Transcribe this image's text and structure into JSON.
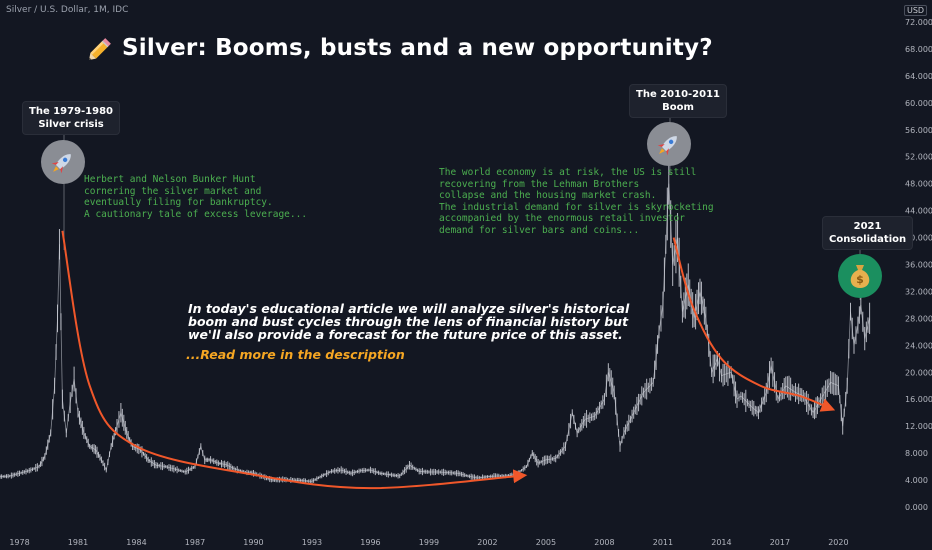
{
  "header": {
    "symbol": "Silver / U.S. Dollar, 1M, IDC",
    "currency": "USD"
  },
  "title": "Silver: Booms, busts and a new opportunity?",
  "callouts": {
    "crisis_1980": [
      "The 1979-1980",
      "Silver crisis"
    ],
    "boom_2011": [
      "The 2010-2011",
      "Boom"
    ],
    "consolidation_2021": [
      "2021",
      "Consolidation"
    ]
  },
  "notes": {
    "hunt": [
      "Herbert and Nelson Bunker Hunt",
      "cornering the silver market and",
      "eventually filing for bankruptcy.",
      "A cautionary tale of excess leverage..."
    ],
    "economy": [
      "The world economy is at risk, the US is still",
      "recovering from the Lehman Brothers",
      "collapse and the housing market crash.",
      "The industrial demand for silver is skyrocketing",
      "accompanied by the enormous retail investor",
      "demand for silver bars and coins..."
    ]
  },
  "article": [
    "In today's educational article we will analyze silver's historical",
    "boom and bust cycles through the lens of financial history but",
    "we'll also provide a forecast for the future price of this asset."
  ],
  "read_more": "...Read more in the description",
  "colors": {
    "background": "#131722",
    "price": "#d1d4dc",
    "arrow": "#f0572a",
    "note": "#4caf50",
    "read_more": "#f5a623",
    "badge_grey": "#8a8d94",
    "badge_green": "#1b8f5f"
  },
  "icons": {
    "title": "pencil-icon",
    "crisis_1980": "rocket-icon",
    "boom_2011": "rocket-icon",
    "consolidation_2021": "money-bag-icon"
  },
  "chart_data": {
    "type": "line",
    "title": "Silver: Booms, busts and a new opportunity?",
    "x_ticks": [
      "1978",
      "1981",
      "1984",
      "1987",
      "1990",
      "1993",
      "1996",
      "1999",
      "2002",
      "2005",
      "2008",
      "2011",
      "2014",
      "2017",
      "2020"
    ],
    "y_ticks": [
      "0.000",
      "4.000",
      "8.000",
      "12.000",
      "16.000",
      "20.000",
      "24.000",
      "28.000",
      "32.000",
      "36.000",
      "40.000",
      "44.000",
      "48.000",
      "52.000",
      "56.000",
      "60.000",
      "64.000",
      "68.000",
      "72.000"
    ],
    "xlim": [
      1977.0,
      2022.8
    ],
    "ylim": [
      0,
      72
    ],
    "series": [
      {
        "values": [
          [
            1977.0,
            4.5
          ],
          [
            1977.5,
            4.6
          ],
          [
            1978.0,
            5.0
          ],
          [
            1978.5,
            5.4
          ],
          [
            1979.0,
            6.0
          ],
          [
            1979.3,
            7.5
          ],
          [
            1979.6,
            11.0
          ],
          [
            1979.8,
            18.0
          ],
          [
            1979.95,
            28.0
          ],
          [
            1980.05,
            39.0
          ],
          [
            1980.2,
            16.0
          ],
          [
            1980.4,
            11.0
          ],
          [
            1980.6,
            15.5
          ],
          [
            1980.8,
            19.0
          ],
          [
            1981.0,
            14.0
          ],
          [
            1981.3,
            11.0
          ],
          [
            1981.6,
            9.0
          ],
          [
            1981.9,
            8.5
          ],
          [
            1982.2,
            7.0
          ],
          [
            1982.45,
            5.5
          ],
          [
            1982.7,
            9.0
          ],
          [
            1983.0,
            12.0
          ],
          [
            1983.2,
            14.0
          ],
          [
            1983.5,
            11.0
          ],
          [
            1983.8,
            9.0
          ],
          [
            1984.2,
            8.5
          ],
          [
            1984.6,
            7.0
          ],
          [
            1985.0,
            6.2
          ],
          [
            1985.5,
            6.0
          ],
          [
            1986.0,
            5.6
          ],
          [
            1986.5,
            5.2
          ],
          [
            1987.0,
            6.0
          ],
          [
            1987.3,
            9.0
          ],
          [
            1987.5,
            7.0
          ],
          [
            1987.8,
            7.0
          ],
          [
            1988.2,
            6.5
          ],
          [
            1988.6,
            6.3
          ],
          [
            1989.0,
            5.7
          ],
          [
            1989.5,
            5.2
          ],
          [
            1990.0,
            5.0
          ],
          [
            1990.5,
            4.5
          ],
          [
            1991.0,
            4.0
          ],
          [
            1991.5,
            4.1
          ],
          [
            1992.0,
            4.0
          ],
          [
            1992.5,
            3.9
          ],
          [
            1993.0,
            3.8
          ],
          [
            1993.5,
            4.6
          ],
          [
            1994.0,
            5.3
          ],
          [
            1994.5,
            5.5
          ],
          [
            1995.0,
            5.0
          ],
          [
            1995.5,
            5.4
          ],
          [
            1996.0,
            5.5
          ],
          [
            1996.5,
            5.0
          ],
          [
            1997.0,
            4.8
          ],
          [
            1997.5,
            4.6
          ],
          [
            1998.0,
            6.2
          ],
          [
            1998.5,
            5.3
          ],
          [
            1999.0,
            5.2
          ],
          [
            1999.5,
            5.2
          ],
          [
            2000.0,
            5.1
          ],
          [
            2000.5,
            5.0
          ],
          [
            2001.0,
            4.6
          ],
          [
            2001.5,
            4.3
          ],
          [
            2002.0,
            4.5
          ],
          [
            2002.5,
            4.6
          ],
          [
            2003.0,
            4.6
          ],
          [
            2003.5,
            4.9
          ],
          [
            2004.0,
            6.0
          ],
          [
            2004.3,
            8.0
          ],
          [
            2004.6,
            6.5
          ],
          [
            2005.0,
            7.0
          ],
          [
            2005.5,
            7.2
          ],
          [
            2006.0,
            9.0
          ],
          [
            2006.35,
            14.0
          ],
          [
            2006.6,
            11.0
          ],
          [
            2007.0,
            13.0
          ],
          [
            2007.5,
            13.5
          ],
          [
            2008.0,
            16.0
          ],
          [
            2008.2,
            20.0
          ],
          [
            2008.5,
            17.0
          ],
          [
            2008.8,
            9.0
          ],
          [
            2009.0,
            11.0
          ],
          [
            2009.5,
            14.0
          ],
          [
            2010.0,
            17.0
          ],
          [
            2010.5,
            18.5
          ],
          [
            2010.8,
            26.0
          ],
          [
            2011.0,
            30.0
          ],
          [
            2011.3,
            48.0
          ],
          [
            2011.5,
            36.0
          ],
          [
            2011.75,
            40.0
          ],
          [
            2012.0,
            29.0
          ],
          [
            2012.3,
            33.0
          ],
          [
            2012.6,
            28.0
          ],
          [
            2012.9,
            32.0
          ],
          [
            2013.2,
            28.0
          ],
          [
            2013.5,
            20.0
          ],
          [
            2013.8,
            22.0
          ],
          [
            2014.0,
            19.5
          ],
          [
            2014.5,
            20.0
          ],
          [
            2014.8,
            16.0
          ],
          [
            2015.0,
            16.5
          ],
          [
            2015.5,
            15.0
          ],
          [
            2015.9,
            14.0
          ],
          [
            2016.3,
            17.0
          ],
          [
            2016.55,
            21.0
          ],
          [
            2016.9,
            16.0
          ],
          [
            2017.3,
            18.0
          ],
          [
            2017.8,
            17.0
          ],
          [
            2018.2,
            16.5
          ],
          [
            2018.7,
            14.0
          ],
          [
            2019.0,
            15.5
          ],
          [
            2019.6,
            18.5
          ],
          [
            2020.0,
            18.0
          ],
          [
            2020.22,
            12.0
          ],
          [
            2020.45,
            18.0
          ],
          [
            2020.62,
            29.0
          ],
          [
            2020.8,
            24.0
          ],
          [
            2021.0,
            27.0
          ],
          [
            2021.15,
            30.0
          ],
          [
            2021.35,
            25.0
          ],
          [
            2021.6,
            28.0
          ]
        ]
      }
    ],
    "arrows": [
      {
        "name": "bust-1980s",
        "points": [
          [
            1980.2,
            41.0
          ],
          [
            1981.6,
            18.0
          ],
          [
            1984.0,
            9.0
          ],
          [
            1990.0,
            4.8
          ],
          [
            1996.0,
            2.8
          ],
          [
            2003.9,
            4.7
          ]
        ]
      },
      {
        "name": "bust-2010s",
        "points": [
          [
            2011.55,
            40.0
          ],
          [
            2012.5,
            30.0
          ],
          [
            2014.0,
            22.0
          ],
          [
            2016.0,
            18.0
          ],
          [
            2018.0,
            16.5
          ],
          [
            2019.7,
            14.5
          ]
        ]
      }
    ],
    "grid": false,
    "legend": "none"
  }
}
